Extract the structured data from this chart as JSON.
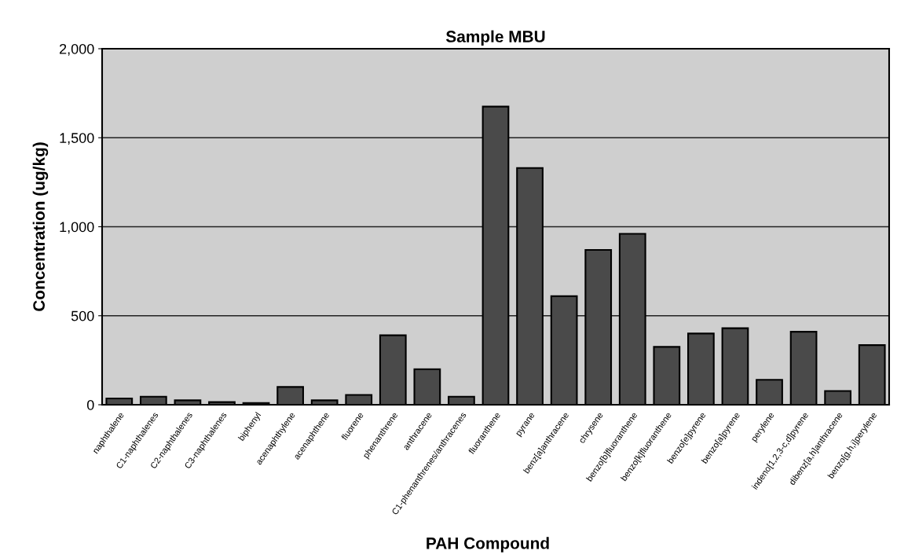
{
  "chart_data": {
    "type": "bar",
    "title": "Sample MBU",
    "xlabel": "PAH Compound",
    "ylabel": "Concentration (ug/kg)",
    "categories": [
      "naphthalene",
      "C1-naphthalenes",
      "C2-naphthalenes",
      "C3-naphthalenes",
      "biphenyl",
      "acenaphthylene",
      "acenaphthene",
      "fluorene",
      "phenanthrene",
      "anthracene",
      "C1-phenanthrenes/anthracenes",
      "fluoranthene",
      "pyrane",
      "benz[a]anthracene",
      "chrysene",
      "benzo[b]fluoranthene",
      "benzo[k]fluoranthene",
      "benzo[e]pyrene",
      "benzo[a]pyrene",
      "perylene",
      "indeno[1,2,3-c,d]pyrene",
      "dibenz[a,h]anthracene",
      "benzo[g,h,i]perylene"
    ],
    "values": [
      35,
      45,
      25,
      15,
      10,
      100,
      25,
      55,
      390,
      200,
      45,
      1675,
      1330,
      610,
      870,
      960,
      325,
      400,
      430,
      140,
      410,
      77,
      335
    ],
    "color": "#4a4a4a",
    "ylim": [
      0,
      2000
    ],
    "yticks": [
      {
        "value": 0,
        "label": "0"
      },
      {
        "value": 500,
        "label": "500"
      },
      {
        "value": 1000,
        "label": "1,000"
      },
      {
        "value": 1500,
        "label": "1,500"
      },
      {
        "value": 2000,
        "label": "2,000"
      }
    ],
    "grid": "y",
    "legend": false
  }
}
